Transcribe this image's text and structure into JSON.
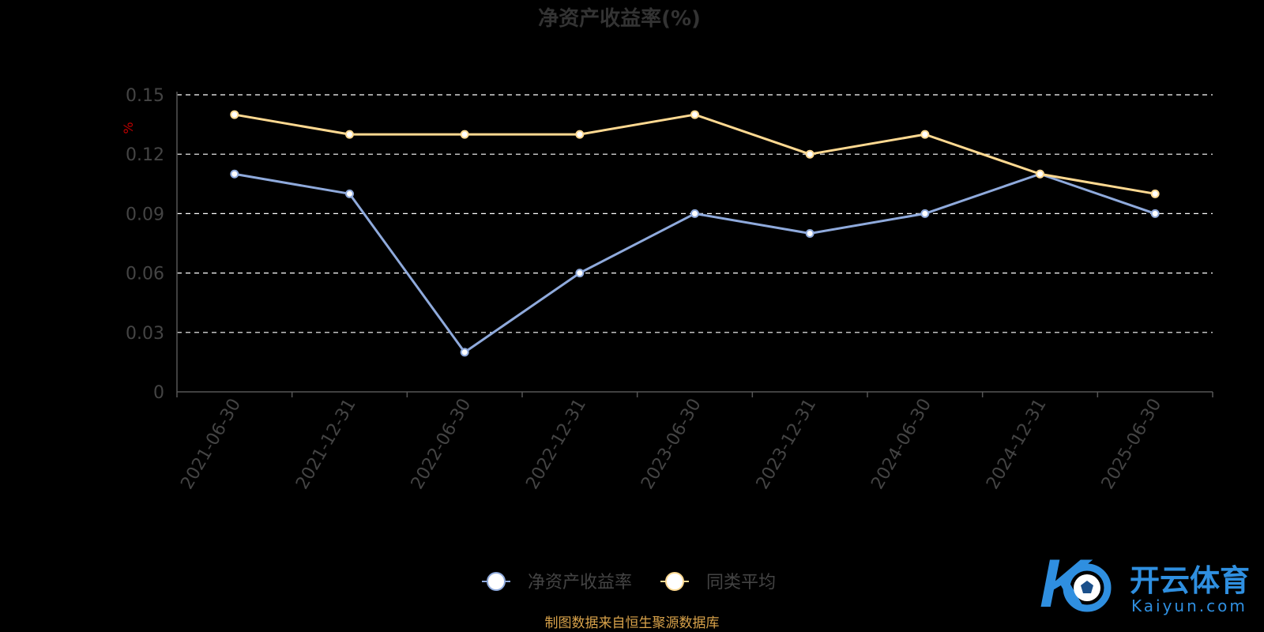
{
  "chart_data": {
    "type": "line",
    "title": "净资产收益率(%)",
    "ylabel": "%",
    "xlabel": "",
    "ylim": [
      0,
      0.15
    ],
    "y_ticks": [
      "0",
      "0.03",
      "0.06",
      "0.09",
      "0.12",
      "0.15"
    ],
    "y_tick_values": [
      0,
      0.03,
      0.06,
      0.09,
      0.12,
      0.15
    ],
    "grid": true,
    "legend_position": "bottom-center",
    "categories": [
      "2021-06-30",
      "2021-12-31",
      "2022-06-30",
      "2022-12-31",
      "2023-06-30",
      "2023-12-31",
      "2024-06-30",
      "2024-12-31",
      "2025-06-30"
    ],
    "series": [
      {
        "name": "净资产收益率",
        "color": "#8faadc",
        "values": [
          0.11,
          0.1,
          0.02,
          0.06,
          0.09,
          0.08,
          0.09,
          0.11,
          0.09
        ]
      },
      {
        "name": "同类平均",
        "color": "#ffd991",
        "values": [
          0.14,
          0.13,
          0.13,
          0.13,
          0.14,
          0.12,
          0.13,
          0.11,
          0.1
        ]
      }
    ]
  },
  "source_note": "制图数据来自恒生聚源数据库",
  "logo": {
    "cn": "开云体育",
    "en": "Kaiyun.com",
    "icon": "ko-football-logo-icon"
  },
  "colors": {
    "background": "#000000",
    "grid": "#ffffff",
    "axis": "#555555"
  }
}
